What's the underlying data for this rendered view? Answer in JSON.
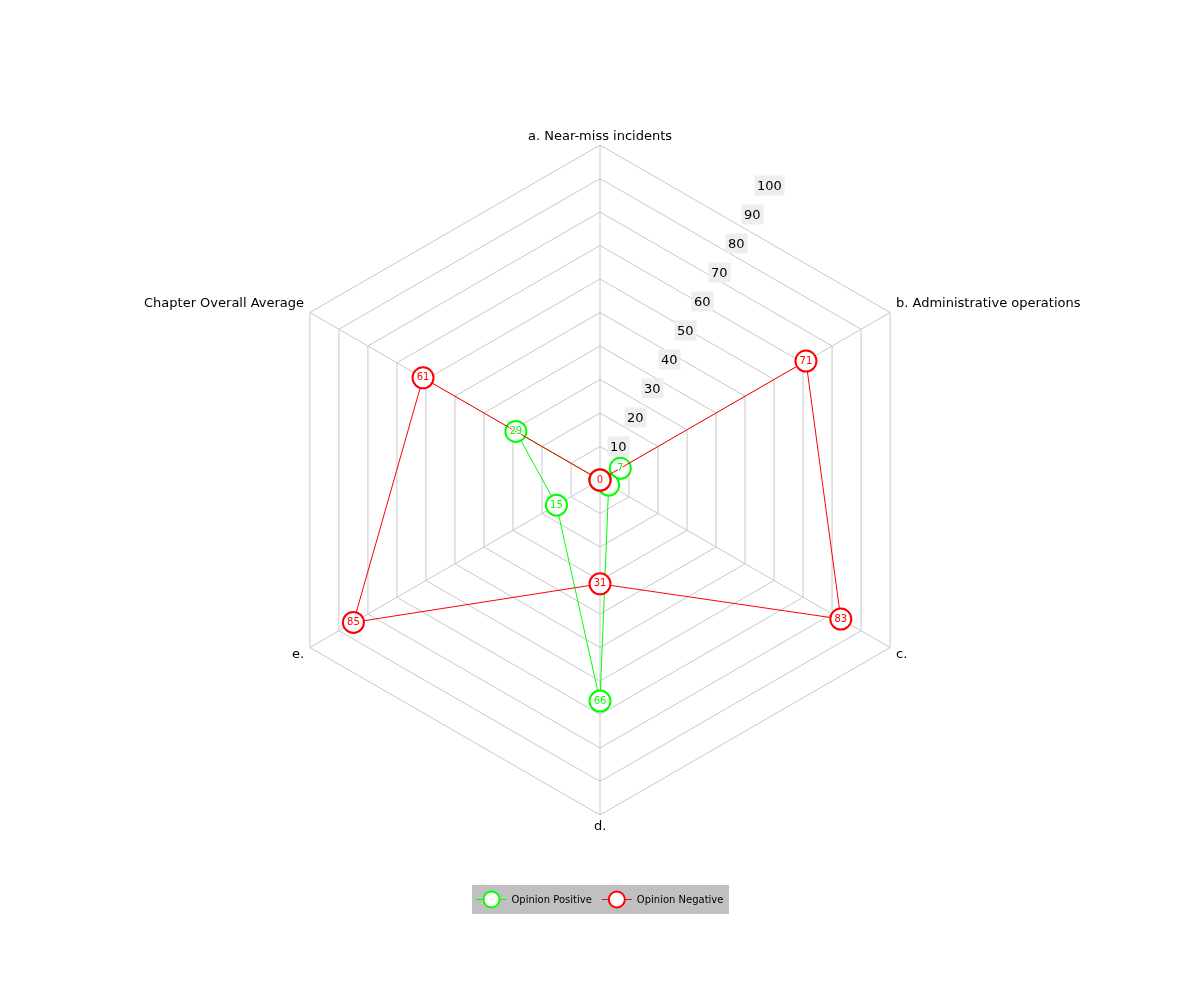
{
  "chart_data": {
    "type": "radar",
    "categories": [
      "a. Near-miss incidents",
      "b. Administrative operations",
      "c.",
      "d.",
      "e.",
      "Chapter Overall Average"
    ],
    "series": [
      {
        "name": "Opinion Positive",
        "color": "#00ff00",
        "values": [
          0,
          7,
          3,
          66,
          15,
          29
        ],
        "value_labels": [
          null,
          "7",
          null,
          "66",
          "15",
          "29"
        ]
      },
      {
        "name": "Opinion Negative",
        "color": "#ff0000",
        "values": [
          0,
          71,
          83,
          31,
          85,
          61
        ],
        "value_labels": [
          "0",
          "71",
          "83",
          "31",
          "85",
          "61"
        ]
      }
    ],
    "ylim": [
      0,
      100
    ],
    "yticks": [
      10,
      20,
      30,
      40,
      50,
      60,
      70,
      80,
      90,
      100
    ],
    "grid": true,
    "legend": "bottom",
    "marker": "circle"
  }
}
